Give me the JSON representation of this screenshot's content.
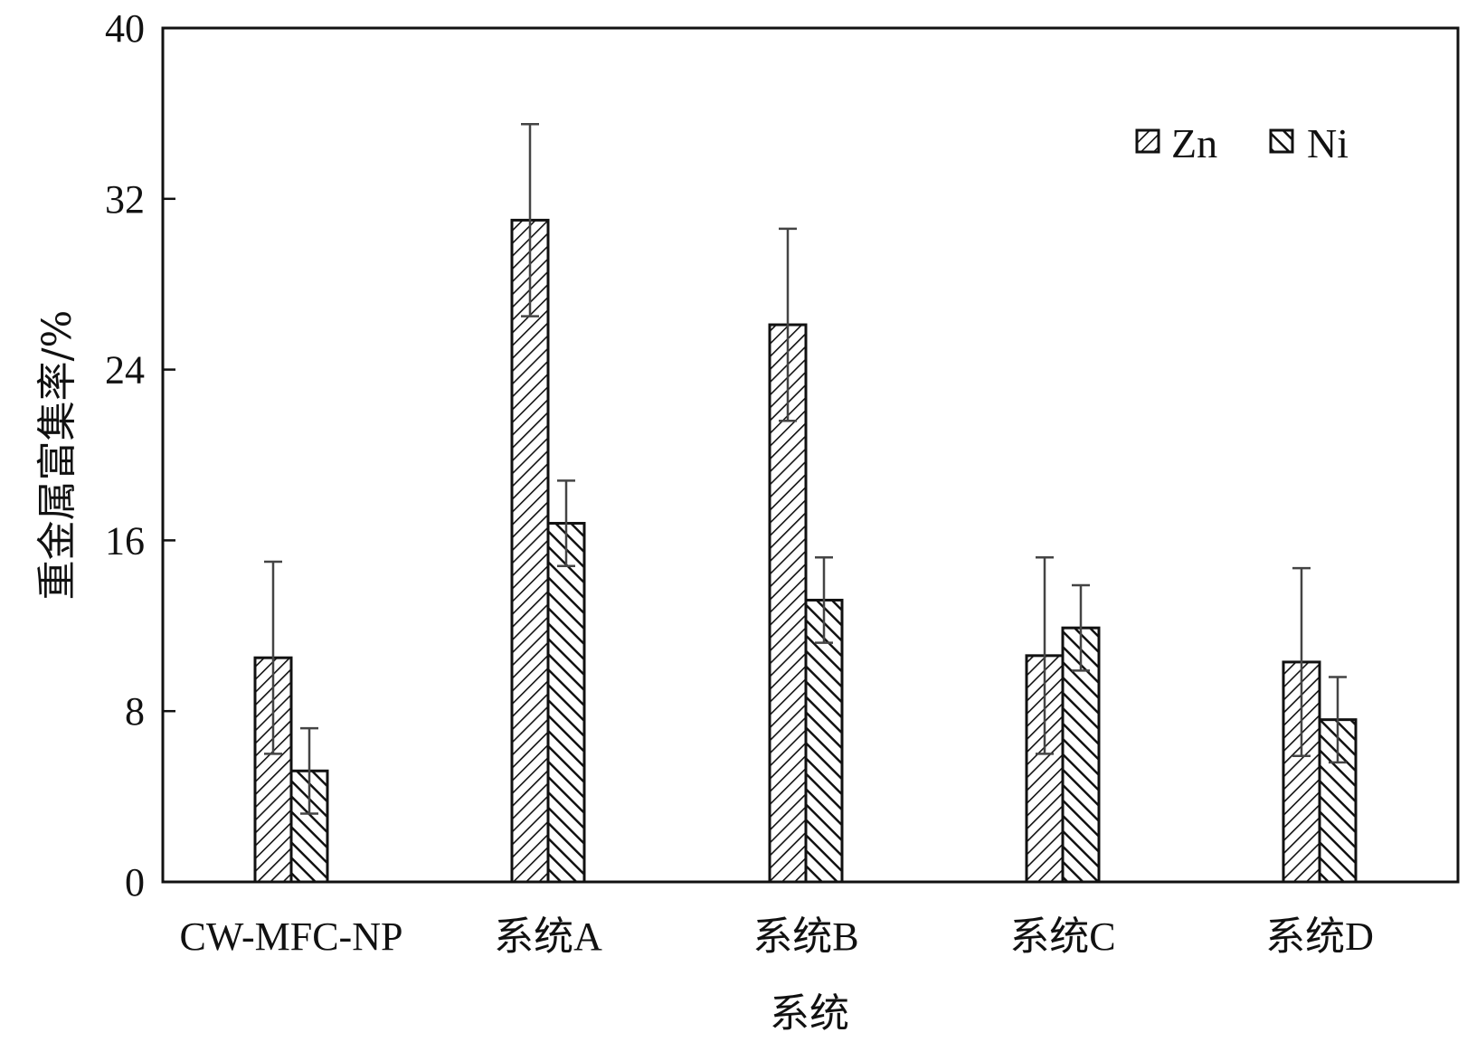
{
  "chart_data": {
    "type": "bar",
    "title": "",
    "xlabel": "系统",
    "ylabel": "重金属富集率/%",
    "ylim": [
      0,
      40
    ],
    "yticks": [
      0,
      8,
      16,
      24,
      32,
      40
    ],
    "categories": [
      "CW-MFC-NP",
      "系统A",
      "系统B",
      "系统C",
      "系统D"
    ],
    "series": [
      {
        "name": "Zn",
        "values": [
          10.5,
          31.0,
          26.1,
          10.6,
          10.3
        ],
        "errors": [
          4.5,
          4.5,
          4.5,
          4.6,
          4.4
        ]
      },
      {
        "name": "Ni",
        "values": [
          5.2,
          16.8,
          13.2,
          11.9,
          7.6
        ],
        "errors": [
          2.0,
          2.0,
          2.0,
          2.0,
          2.0
        ]
      }
    ],
    "legend_position": "top-right",
    "grid": false
  }
}
